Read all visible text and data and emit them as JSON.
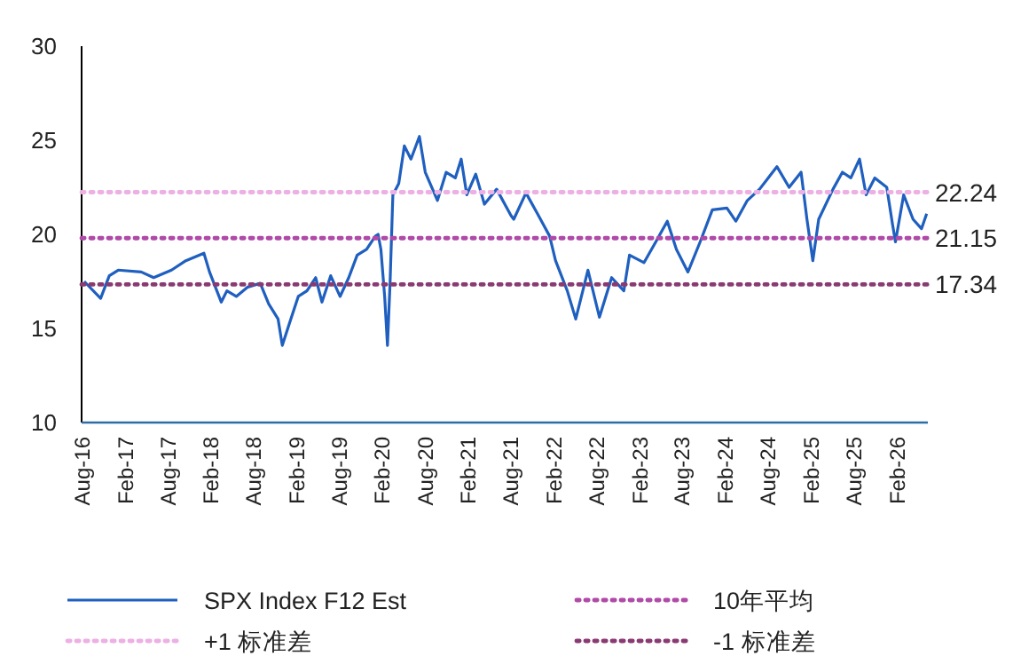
{
  "chart_data": {
    "type": "line",
    "xlim": [
      "2016-08-01",
      "2026-06-15"
    ],
    "ylim": [
      10,
      30
    ],
    "yticks": [
      10,
      15,
      20,
      25,
      30
    ],
    "xticks": [
      {
        "value": "2016-08",
        "label": "Aug-16"
      },
      {
        "value": "2017-02",
        "label": "Feb-17"
      },
      {
        "value": "2017-08",
        "label": "Aug-17"
      },
      {
        "value": "2018-02",
        "label": "Feb-18"
      },
      {
        "value": "2018-08",
        "label": "Aug-18"
      },
      {
        "value": "2019-02",
        "label": "Feb-19"
      },
      {
        "value": "2019-08",
        "label": "Aug-19"
      },
      {
        "value": "2020-02",
        "label": "Feb-20"
      },
      {
        "value": "2020-08",
        "label": "Aug-20"
      },
      {
        "value": "2021-02",
        "label": "Feb-21"
      },
      {
        "value": "2021-08",
        "label": "Aug-21"
      },
      {
        "value": "2022-02",
        "label": "Feb-22"
      },
      {
        "value": "2022-08",
        "label": "Aug-22"
      },
      {
        "value": "2023-02",
        "label": "Feb-23"
      },
      {
        "value": "2023-08",
        "label": "Aug-23"
      },
      {
        "value": "2024-02",
        "label": "Feb-24"
      },
      {
        "value": "2024-08",
        "label": "Aug-24"
      },
      {
        "value": "2025-02",
        "label": "Feb-25"
      },
      {
        "value": "2025-08",
        "label": "Aug-25"
      },
      {
        "value": "2026-02",
        "label": "Feb-26"
      }
    ],
    "legend": "bottom",
    "grid": false,
    "marker": "none",
    "series": [
      {
        "name": "SPX Index F12 Est",
        "color": "#1f5fbf",
        "line_style": "solid",
        "x": [
          "2016-08-12",
          "2016-10-21",
          "2016-11-27",
          "2017-01-04",
          "2017-04-12",
          "2017-06-04",
          "2017-08-19",
          "2017-10-19",
          "2018-01-04",
          "2018-01-28",
          "2018-03-19",
          "2018-04-12",
          "2018-05-22",
          "2018-07-10",
          "2018-09-01",
          "2018-10-07",
          "2018-11-16",
          "2018-12-04",
          "2019-01-04",
          "2019-02-10",
          "2019-03-19",
          "2019-04-25",
          "2019-05-22",
          "2019-06-28",
          "2019-08-07",
          "2019-09-13",
          "2019-10-19",
          "2019-11-28",
          "2020-01-04",
          "2020-01-16",
          "2020-01-28",
          "2020-02-13",
          "2020-02-25",
          "2020-03-07",
          "2020-03-19",
          "2020-04-13",
          "2020-05-07",
          "2020-06-04",
          "2020-07-10",
          "2020-08-04",
          "2020-09-25",
          "2020-11-01",
          "2020-12-10",
          "2021-01-04",
          "2021-01-28",
          "2021-03-07",
          "2021-04-13",
          "2021-06-04",
          "2021-08-04",
          "2021-08-16",
          "2021-10-07",
          "2021-11-25",
          "2022-01-16",
          "2022-02-10",
          "2022-04-01",
          "2022-05-07",
          "2022-06-28",
          "2022-08-16",
          "2022-10-07",
          "2022-11-28",
          "2022-12-22",
          "2023-02-22",
          "2023-04-13",
          "2023-06-01",
          "2023-07-10",
          "2023-08-28",
          "2023-10-19",
          "2023-12-10",
          "2024-02-10",
          "2024-03-19",
          "2024-05-07",
          "2024-06-28",
          "2024-08-04",
          "2024-09-10",
          "2024-11-01",
          "2024-12-22",
          "2025-01-16",
          "2025-02-10",
          "2025-03-07",
          "2025-05-07",
          "2025-06-16",
          "2025-07-22",
          "2025-08-28",
          "2025-09-25",
          "2025-11-01",
          "2025-12-22",
          "2026-01-16",
          "2026-01-28",
          "2026-03-04",
          "2026-04-13",
          "2026-05-19",
          "2026-06-10"
        ],
        "values": [
          17.5,
          16.6,
          17.8,
          18.1,
          18.0,
          17.7,
          18.1,
          18.6,
          19.0,
          18.0,
          16.4,
          17.0,
          16.7,
          17.2,
          17.4,
          16.3,
          15.5,
          14.1,
          15.3,
          16.7,
          17.0,
          17.7,
          16.4,
          17.8,
          16.7,
          17.7,
          18.9,
          19.2,
          19.9,
          20.0,
          19.2,
          16.7,
          14.1,
          17.4,
          22.1,
          22.7,
          24.7,
          24.0,
          25.2,
          23.3,
          21.8,
          23.3,
          23.0,
          24.0,
          22.1,
          23.2,
          21.6,
          22.4,
          21.0,
          20.8,
          22.2,
          21.1,
          19.9,
          18.6,
          17.0,
          15.5,
          18.1,
          15.6,
          17.7,
          17.0,
          18.9,
          18.5,
          19.6,
          20.7,
          19.2,
          18.0,
          19.6,
          21.3,
          21.4,
          20.7,
          21.8,
          22.4,
          23.0,
          23.6,
          22.5,
          23.3,
          20.8,
          18.6,
          20.8,
          22.4,
          23.3,
          23.0,
          24.0,
          22.1,
          23.0,
          22.5,
          20.5,
          19.6,
          22.1,
          20.8,
          20.3,
          21.1
        ]
      },
      {
        "name": "10年平均",
        "color": "#b04aa8",
        "line_style": "dotted",
        "x": [
          "2016-08-01",
          "2026-06-15"
        ],
        "values": [
          19.8,
          19.8
        ]
      },
      {
        "name": "+1 标准差",
        "color": "#ecb0e4",
        "line_style": "dotted",
        "x": [
          "2016-08-01",
          "2026-06-15"
        ],
        "values": [
          22.24,
          22.24
        ]
      },
      {
        "name": "-1 标准差",
        "color": "#8a3a72",
        "line_style": "dotted",
        "x": [
          "2016-08-01",
          "2026-06-15"
        ],
        "values": [
          17.34,
          17.34
        ]
      }
    ],
    "annotations": [
      {
        "text": "22.24",
        "x": "2026-06-15",
        "y": 22.24
      },
      {
        "text": "21.15",
        "x": "2026-06-15",
        "y": 19.8
      },
      {
        "text": "17.34",
        "x": "2026-06-15",
        "y": 17.34
      }
    ]
  }
}
